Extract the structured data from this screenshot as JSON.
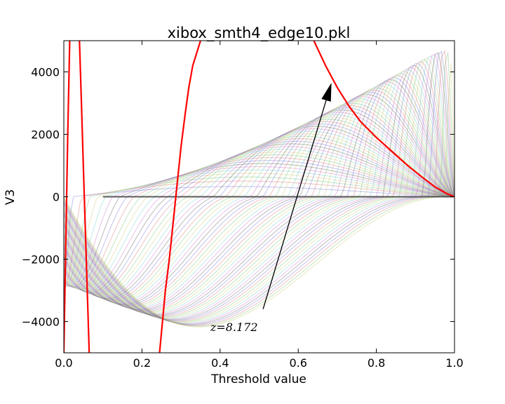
{
  "chart_data": {
    "type": "line",
    "title": "xibox_smth4_edge10.pkl",
    "xlabel": "Threshold value",
    "ylabel": "V3",
    "xlim": [
      0.0,
      1.0
    ],
    "ylim": [
      -5000,
      5000
    ],
    "x_ticks": [
      0.0,
      0.2,
      0.4,
      0.6,
      0.8,
      1.0
    ],
    "x_tick_labels": [
      "0.0",
      "0.2",
      "0.4",
      "0.6",
      "0.8",
      "1.0"
    ],
    "y_ticks": [
      -4000,
      -2000,
      0,
      2000,
      4000
    ],
    "y_tick_labels": [
      "−4000",
      "−2000",
      "0",
      "2000",
      "4000"
    ],
    "grid": false,
    "background_series_colors": [
      "#6b6bd6",
      "#d96b6b",
      "#6bbf6b",
      "#c8c86b",
      "#6bc8c8",
      "#c86bc8",
      "#555555"
    ],
    "highlight_color": "#ff0000",
    "highlight_series": [
      {
        "x": [
          0.0,
          0.005,
          0.01,
          0.015
        ],
        "y": [
          -5000,
          -1500,
          2000,
          5000
        ]
      },
      {
        "x": [
          0.04,
          0.045,
          0.05,
          0.055,
          0.06,
          0.065
        ],
        "y": [
          5000,
          3000,
          1000,
          -1000,
          -3000,
          -5000
        ]
      },
      {
        "x": [
          0.245,
          0.26,
          0.27,
          0.28,
          0.29,
          0.3,
          0.31,
          0.32,
          0.33,
          0.35
        ],
        "y": [
          -5000,
          -3000,
          -2000,
          -800,
          400,
          1600,
          2600,
          3500,
          4200,
          5000
        ]
      },
      {
        "x": [
          0.64,
          0.67,
          0.7,
          0.73,
          0.76,
          0.8,
          0.84,
          0.88,
          0.92,
          0.95,
          0.98,
          1.0
        ],
        "y": [
          5000,
          4200,
          3500,
          2900,
          2400,
          1900,
          1450,
          1000,
          600,
          320,
          100,
          0
        ]
      }
    ],
    "annotation": {
      "text": "z=8.172",
      "text_x": 0.375,
      "text_y": -4300,
      "arrow_from": [
        0.51,
        -3600
      ],
      "arrow_to": [
        0.685,
        3650
      ]
    }
  }
}
